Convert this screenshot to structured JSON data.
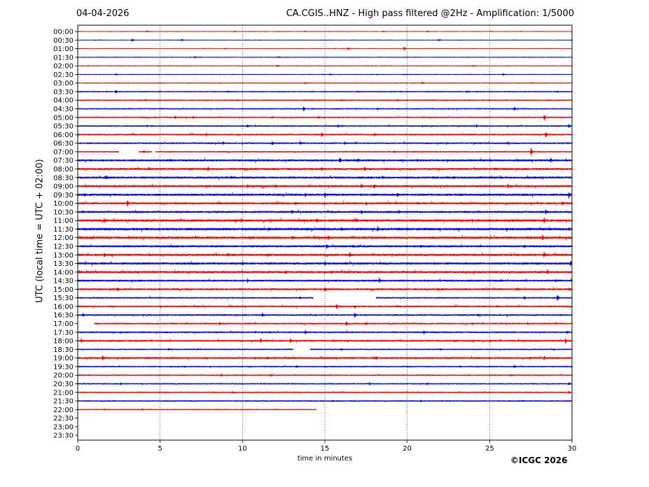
{
  "header": {
    "date": "04-04-2026",
    "title": "CA.CGIS..HNZ - High pass filtered @2Hz - Amplification: 1/5000"
  },
  "footer": {
    "copyright": "©ICGC 2026"
  },
  "chart_data": {
    "type": "line",
    "title": "CA.CGIS..HNZ - High pass filtered @2Hz - Amplification: 1/5000",
    "xlabel": "time in minutes",
    "ylabel": "UTC (local time = UTC + 02:00)",
    "xlim": [
      0,
      30
    ],
    "x_ticks": [
      0,
      5,
      10,
      15,
      20,
      25,
      30
    ],
    "grid_vertical": [
      5,
      10,
      15,
      20,
      25
    ],
    "row_labels": [
      "00:00",
      "00:30",
      "01:00",
      "01:30",
      "02:00",
      "02:30",
      "03:00",
      "03:30",
      "04:00",
      "04:30",
      "05:00",
      "05:30",
      "06:00",
      "06:30",
      "07:00",
      "07:30",
      "08:00",
      "08:30",
      "09:00",
      "09:30",
      "10:00",
      "10:30",
      "11:00",
      "11:30",
      "12:00",
      "12:30",
      "13:00",
      "13:30",
      "14:00",
      "14:30",
      "15:00",
      "15:30",
      "16:00",
      "16:30",
      "17:00",
      "17:30",
      "18:00",
      "18:30",
      "19:00",
      "19:30",
      "20:00",
      "20:30",
      "21:00",
      "21:30",
      "22:00",
      "22:30",
      "23:00",
      "23:30"
    ],
    "colors": {
      "even_rows": "#ff0000",
      "odd_rows": "#0000ff"
    },
    "trace_end_minutes": {
      "22:00": 14.5
    },
    "traces": [
      {
        "row": "00:00",
        "noise": 0.35,
        "events": [
          [
            4.2,
            1.5
          ],
          [
            9.5,
            1.2
          ],
          [
            13.8,
            1.3
          ],
          [
            18.5,
            1.4
          ],
          [
            21.2,
            1.3
          ]
        ],
        "gaps": []
      },
      {
        "row": "00:30",
        "noise": 0.35,
        "events": [
          [
            3.3,
            3
          ],
          [
            6.3,
            2.5
          ],
          [
            21.9,
            2.2
          ]
        ],
        "gaps": []
      },
      {
        "row": "01:00",
        "noise": 0.35,
        "events": [
          [
            16.4,
            2.8
          ],
          [
            19.8,
            3.5
          ],
          [
            8.9,
            1.2
          ]
        ],
        "gaps": []
      },
      {
        "row": "01:30",
        "noise": 0.4,
        "events": [
          [
            7.1,
            2.3
          ],
          [
            12.2,
            1.5
          ]
        ],
        "gaps": []
      },
      {
        "row": "02:00",
        "noise": 0.4,
        "events": [
          [
            12.1,
            2.2
          ],
          [
            24.0,
            1.3
          ]
        ],
        "gaps": []
      },
      {
        "row": "02:30",
        "noise": 0.4,
        "events": [
          [
            2.3,
            2
          ],
          [
            15.3,
            2
          ],
          [
            25.8,
            2.5
          ]
        ],
        "gaps": []
      },
      {
        "row": "03:00",
        "noise": 0.45,
        "events": [
          [
            13.8,
            2.5
          ],
          [
            20.9,
            2.5
          ],
          [
            27.5,
            1.5
          ]
        ],
        "gaps": []
      },
      {
        "row": "03:30",
        "noise": 0.55,
        "events": [
          [
            2.3,
            4
          ],
          [
            9.1,
            2.2
          ],
          [
            17.0,
            2.5
          ],
          [
            23.6,
            2.5
          ],
          [
            29.1,
            2.2
          ]
        ],
        "gaps": []
      },
      {
        "row": "04:00",
        "noise": 0.6,
        "events": [
          [
            4.1,
            3
          ],
          [
            9.7,
            2
          ],
          [
            14.2,
            2
          ],
          [
            16.0,
            2
          ],
          [
            19.4,
            2.2
          ]
        ],
        "gaps": []
      },
      {
        "row": "04:30",
        "noise": 0.9,
        "events": [
          [
            13.7,
            4.5
          ],
          [
            18.2,
            2.5
          ],
          [
            26.5,
            3.5
          ],
          [
            22.5,
            2
          ]
        ],
        "gaps": []
      },
      {
        "row": "05:00",
        "noise": 1.0,
        "events": [
          [
            5.9,
            3.2
          ],
          [
            7.0,
            2.8
          ],
          [
            11.8,
            3
          ],
          [
            14.6,
            3
          ],
          [
            28.3,
            6.5
          ]
        ],
        "gaps": []
      },
      {
        "row": "05:30",
        "noise": 1.1,
        "events": [
          [
            10.3,
            3.5
          ],
          [
            4.2,
            2.5
          ],
          [
            15.8,
            3
          ],
          [
            24.2,
            3
          ],
          [
            29.8,
            4
          ]
        ],
        "gaps": []
      },
      {
        "row": "06:00",
        "noise": 1.3,
        "events": [
          [
            7.8,
            3
          ],
          [
            14.8,
            4.5
          ],
          [
            18.0,
            3
          ],
          [
            28.4,
            5
          ]
        ],
        "gaps": []
      },
      {
        "row": "06:30",
        "noise": 1.3,
        "events": [
          [
            8.8,
            3.5
          ],
          [
            11.8,
            4
          ],
          [
            13.5,
            4.5
          ],
          [
            16.2,
            3
          ],
          [
            26.1,
            3
          ]
        ],
        "gaps": []
      },
      {
        "row": "07:00",
        "noise": 1.0,
        "events": [
          [
            4.0,
            3
          ],
          [
            27.5,
            7
          ],
          [
            19.2,
            2.5
          ]
        ],
        "gaps": [
          [
            2.5,
            3.7
          ],
          [
            4.5,
            4.7
          ]
        ]
      },
      {
        "row": "07:30",
        "noise": 1.6,
        "events": [
          [
            15.9,
            5.5
          ],
          [
            17.0,
            4.5
          ],
          [
            20.6,
            3.5
          ],
          [
            28.7,
            4.5
          ],
          [
            5.6,
            3
          ]
        ],
        "gaps": []
      },
      {
        "row": "08:00",
        "noise": 1.6,
        "events": [
          [
            4.3,
            3.5
          ],
          [
            7.9,
            4.5
          ],
          [
            14.8,
            3.5
          ],
          [
            17.4,
            5
          ],
          [
            25.3,
            3.5
          ]
        ],
        "gaps": []
      },
      {
        "row": "08:30",
        "noise": 1.6,
        "events": [
          [
            1.7,
            4.5
          ],
          [
            9.3,
            3.5
          ],
          [
            17.8,
            3
          ],
          [
            18.5,
            3.5
          ],
          [
            22.8,
            3
          ]
        ],
        "gaps": []
      },
      {
        "row": "09:00",
        "noise": 1.6,
        "events": [
          [
            10.3,
            4.5
          ],
          [
            12.0,
            3.5
          ],
          [
            17.2,
            4.5
          ],
          [
            18.0,
            4
          ],
          [
            26.1,
            4.5
          ]
        ],
        "gaps": []
      },
      {
        "row": "09:30",
        "noise": 1.7,
        "events": [
          [
            0.4,
            4
          ],
          [
            13.8,
            4
          ],
          [
            15.0,
            5
          ],
          [
            19.4,
            4.5
          ],
          [
            29.8,
            6.5
          ]
        ],
        "gaps": []
      },
      {
        "row": "10:00",
        "noise": 1.6,
        "events": [
          [
            3.0,
            6
          ],
          [
            13.2,
            3.5
          ],
          [
            17.5,
            3.5
          ],
          [
            29.4,
            4.5
          ]
        ],
        "gaps": []
      },
      {
        "row": "10:30",
        "noise": 1.6,
        "events": [
          [
            13.0,
            4
          ],
          [
            17.2,
            4.5
          ],
          [
            19.5,
            3.5
          ],
          [
            28.4,
            4.5
          ],
          [
            0.3,
            3
          ]
        ],
        "gaps": []
      },
      {
        "row": "11:00",
        "noise": 1.8,
        "events": [
          [
            1.6,
            5
          ],
          [
            9.9,
            4.5
          ],
          [
            14.5,
            4
          ],
          [
            16.9,
            4.5
          ],
          [
            28.3,
            5.5
          ]
        ],
        "gaps": []
      },
      {
        "row": "11:30",
        "noise": 1.9,
        "events": [
          [
            3.4,
            3.5
          ],
          [
            11.6,
            4.5
          ],
          [
            16.0,
            4.5
          ],
          [
            18.2,
            5
          ],
          [
            29.8,
            4
          ]
        ],
        "gaps": []
      },
      {
        "row": "12:00",
        "noise": 1.8,
        "events": [
          [
            0.8,
            3
          ],
          [
            13.0,
            4
          ],
          [
            15.2,
            4.5
          ],
          [
            28.2,
            5.5
          ]
        ],
        "gaps": []
      },
      {
        "row": "12:30",
        "noise": 1.6,
        "events": [
          [
            15.1,
            5
          ],
          [
            16.7,
            4
          ],
          [
            20.8,
            3.5
          ],
          [
            27.1,
            3.5
          ]
        ],
        "gaps": []
      },
      {
        "row": "13:00",
        "noise": 1.7,
        "events": [
          [
            1.6,
            5
          ],
          [
            9.1,
            3.5
          ],
          [
            16.5,
            5
          ],
          [
            28.3,
            5.5
          ]
        ],
        "gaps": []
      },
      {
        "row": "13:30",
        "noise": 1.7,
        "events": [
          [
            10.0,
            4
          ],
          [
            15.0,
            4.5
          ],
          [
            29.9,
            5
          ]
        ],
        "gaps": []
      },
      {
        "row": "14:00",
        "noise": 1.7,
        "events": [
          [
            0.1,
            3.5
          ],
          [
            12.6,
            4.5
          ],
          [
            16.2,
            3
          ],
          [
            28.5,
            4.5
          ]
        ],
        "gaps": []
      },
      {
        "row": "14:30",
        "noise": 1.5,
        "events": [
          [
            10.3,
            3.5
          ],
          [
            18.3,
            5
          ],
          [
            25.7,
            3
          ],
          [
            29.0,
            3
          ]
        ],
        "gaps": []
      },
      {
        "row": "15:00",
        "noise": 1.5,
        "events": [
          [
            2.4,
            3.5
          ],
          [
            15.0,
            5.5
          ],
          [
            22.1,
            3
          ],
          [
            26.7,
            3.5
          ],
          [
            29.8,
            3
          ]
        ],
        "gaps": []
      },
      {
        "row": "15:30",
        "noise": 1.2,
        "events": [
          [
            29.1,
            6.5
          ],
          [
            27.1,
            3.5
          ],
          [
            13.5,
            2.5
          ]
        ],
        "gaps": [
          [
            14.3,
            18.1
          ]
        ]
      },
      {
        "row": "16:00",
        "noise": 1.3,
        "events": [
          [
            15.7,
            4.5
          ],
          [
            16.8,
            3.5
          ],
          [
            25.4,
            3
          ]
        ],
        "gaps": []
      },
      {
        "row": "16:30",
        "noise": 1.3,
        "events": [
          [
            0.3,
            4
          ],
          [
            11.2,
            4.5
          ],
          [
            16.8,
            4.5
          ],
          [
            24.3,
            3
          ]
        ],
        "gaps": []
      },
      {
        "row": "17:00",
        "noise": 1.3,
        "events": [
          [
            8.6,
            3.5
          ],
          [
            16.3,
            4.5
          ],
          [
            17.5,
            3
          ],
          [
            27.3,
            3
          ]
        ],
        "gaps": [
          [
            0,
            1
          ]
        ]
      },
      {
        "row": "17:30",
        "noise": 1.3,
        "events": [
          [
            13.8,
            4
          ],
          [
            21.0,
            4
          ],
          [
            11.6,
            3
          ],
          [
            29.7,
            3
          ]
        ],
        "gaps": []
      },
      {
        "row": "18:00",
        "noise": 1.4,
        "events": [
          [
            0.2,
            4
          ],
          [
            12.9,
            4
          ],
          [
            11.1,
            3.5
          ],
          [
            24.0,
            3
          ],
          [
            29.6,
            4.5
          ]
        ],
        "gaps": []
      },
      {
        "row": "18:30",
        "noise": 1.0,
        "events": [
          [
            5.5,
            2.5
          ],
          [
            16.0,
            2.5
          ],
          [
            22.0,
            2.5
          ]
        ],
        "gaps": [
          [
            13.1,
            14.1
          ]
        ]
      },
      {
        "row": "19:00",
        "noise": 1.5,
        "events": [
          [
            1.5,
            5
          ],
          [
            18.1,
            4
          ],
          [
            11.5,
            3
          ],
          [
            28.3,
            4
          ]
        ],
        "gaps": []
      },
      {
        "row": "19:30",
        "noise": 1.0,
        "events": [
          [
            6.5,
            2.5
          ],
          [
            13.3,
            2.5
          ],
          [
            23.2,
            2.5
          ],
          [
            26.5,
            3
          ]
        ],
        "gaps": []
      },
      {
        "row": "20:00",
        "noise": 0.9,
        "events": [
          [
            8.7,
            3
          ],
          [
            11.7,
            3.5
          ],
          [
            26.3,
            2.5
          ]
        ],
        "gaps": []
      },
      {
        "row": "20:30",
        "noise": 0.9,
        "events": [
          [
            2.6,
            3
          ],
          [
            17.7,
            3
          ],
          [
            21.2,
            2.5
          ],
          [
            29.8,
            3.5
          ]
        ],
        "gaps": []
      },
      {
        "row": "21:00",
        "noise": 0.8,
        "events": [
          [
            9.4,
            2.5
          ],
          [
            29.8,
            3
          ],
          [
            16.1,
            2
          ]
        ],
        "gaps": []
      },
      {
        "row": "21:30",
        "noise": 0.7,
        "events": [
          [
            15.5,
            2.5
          ],
          [
            20.8,
            2.5
          ],
          [
            27.0,
            2
          ]
        ],
        "gaps": []
      },
      {
        "row": "22:00",
        "noise": 0.5,
        "events": [
          [
            3.9,
            2.2
          ],
          [
            1.6,
            2
          ]
        ],
        "gaps": []
      }
    ]
  }
}
